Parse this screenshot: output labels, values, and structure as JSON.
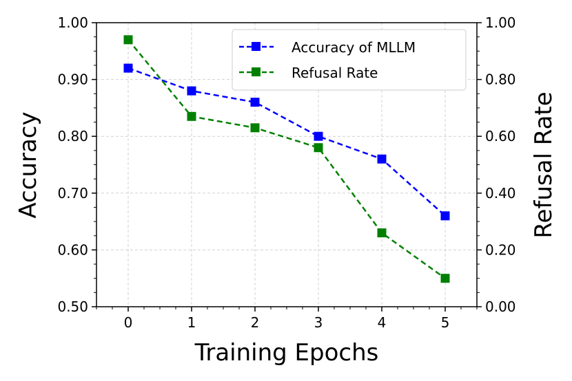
{
  "chart_data": {
    "type": "line",
    "title": "",
    "xlabel": "Training Epochs",
    "ylabel": "Accuracy",
    "y2label": "Refusal Rate",
    "x": [
      0,
      1,
      2,
      3,
      4,
      5
    ],
    "xticks": [
      "0",
      "1",
      "2",
      "3",
      "4",
      "5"
    ],
    "xlim": [
      -0.5,
      5.5
    ],
    "ylim": [
      0.5,
      1.0
    ],
    "y2lim": [
      0.0,
      1.0
    ],
    "yticks": [
      "0.50",
      "0.60",
      "0.70",
      "0.80",
      "0.90",
      "1.00"
    ],
    "y2ticks": [
      "0.00",
      "0.20",
      "0.40",
      "0.60",
      "0.80",
      "1.00"
    ],
    "grid": true,
    "legend_position": "top-right",
    "series": [
      {
        "name": "Accuracy of MLLM",
        "axis": "left",
        "color": "#0000ff",
        "marker": "square",
        "linestyle": "dashed",
        "values": [
          0.92,
          0.88,
          0.86,
          0.8,
          0.76,
          0.66
        ]
      },
      {
        "name": "Refusal Rate",
        "axis": "right",
        "color": "#008000",
        "marker": "square",
        "linestyle": "dashed",
        "values": [
          0.94,
          0.67,
          0.63,
          0.56,
          0.26,
          0.1
        ]
      }
    ]
  }
}
